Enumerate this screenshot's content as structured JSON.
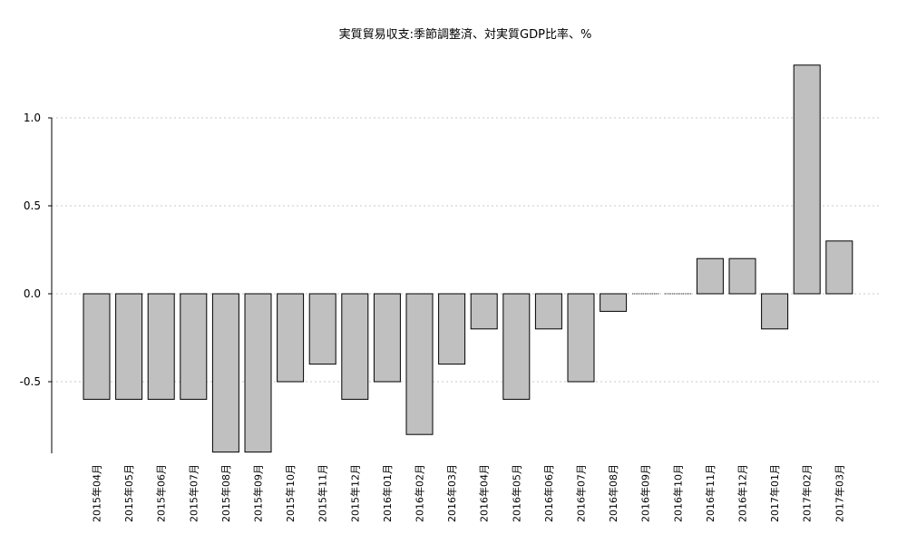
{
  "chart_data": {
    "type": "bar",
    "title": "実質貿易収支:季節調整済、対実質GDP比率、%",
    "xlabel": "",
    "ylabel": "",
    "ylim": [
      -0.9,
      1.3
    ],
    "yticks": [
      -0.5,
      0.0,
      0.5,
      1.0
    ],
    "ytick_labels": [
      "-0.5",
      "0.0",
      "0.5",
      "1.0"
    ],
    "grid": true,
    "categories": [
      "2015年04月",
      "2015年05月",
      "2015年06月",
      "2015年07月",
      "2015年08月",
      "2015年09月",
      "2015年10月",
      "2015年11月",
      "2015年12月",
      "2016年01月",
      "2016年02月",
      "2016年03月",
      "2016年04月",
      "2016年05月",
      "2016年06月",
      "2016年07月",
      "2016年08月",
      "2016年09月",
      "2016年10月",
      "2016年11月",
      "2016年12月",
      "2017年01月",
      "2017年02月",
      "2017年03月"
    ],
    "values": [
      -0.6,
      -0.6,
      -0.6,
      -0.6,
      -0.9,
      -0.9,
      -0.5,
      -0.4,
      -0.6,
      -0.5,
      -0.8,
      -0.4,
      -0.2,
      -0.6,
      -0.2,
      -0.5,
      -0.1,
      0.0,
      0.0,
      0.2,
      0.2,
      -0.2,
      1.3,
      0.3
    ],
    "bar_color": "#c0c0c0",
    "bar_stroke": "#000000",
    "grid_color": "#c8c8c8"
  }
}
